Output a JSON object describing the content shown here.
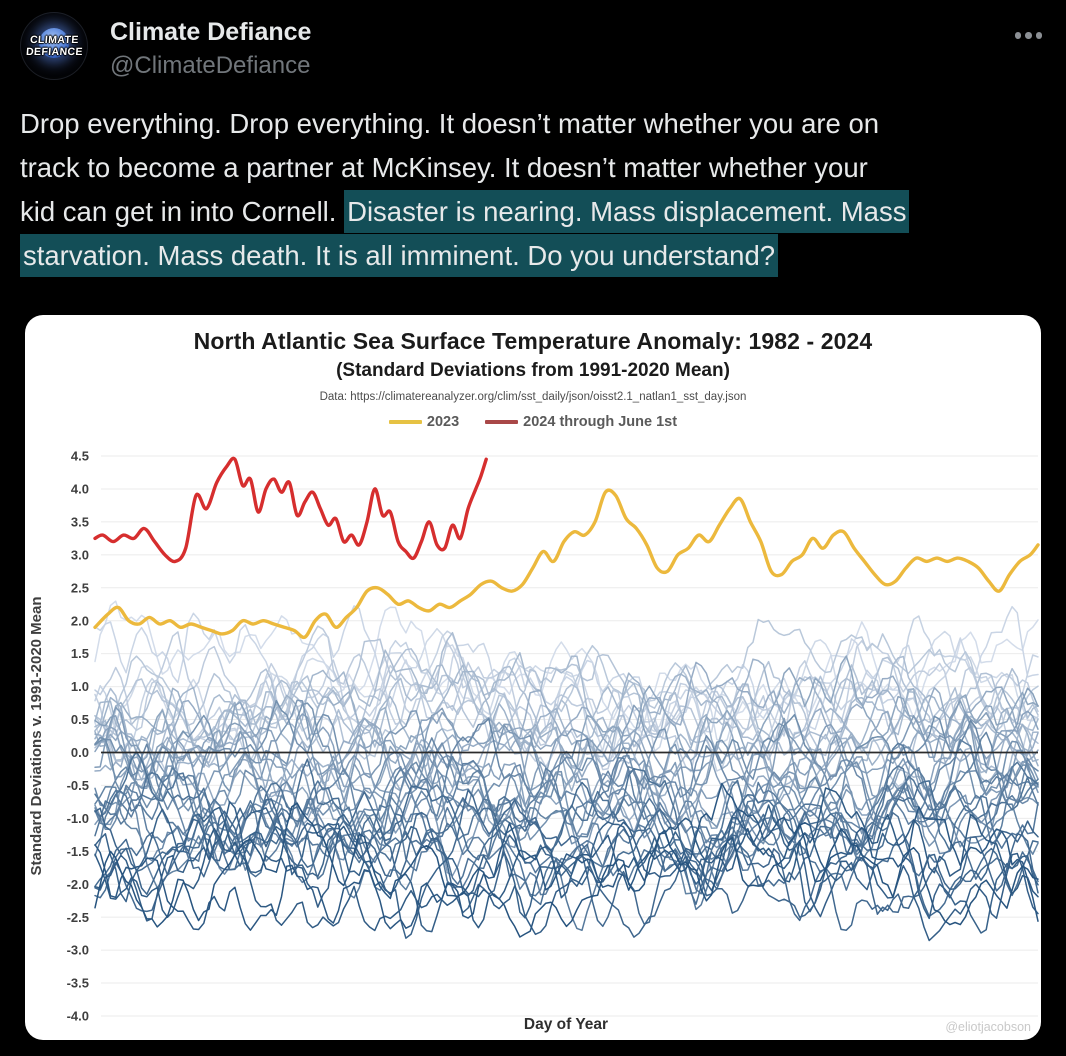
{
  "page": {
    "background": "#000000",
    "card_background": "#ffffff"
  },
  "header": {
    "display_name": "Climate Defiance",
    "handle": "@ClimateDefiance",
    "more_icon": "three-dots"
  },
  "avatar": {
    "line1": "CLIMATE",
    "line2": "DEFIANCE"
  },
  "tweet": {
    "text_color": "#e7e9ea",
    "highlight_color": "#134e57",
    "lines": [
      [
        {
          "text": "Drop everything. Drop everything. It doesn’t matter whether you are on",
          "highlight": false
        }
      ],
      [
        {
          "text": "track to become a partner at McKinsey. It doesn’t matter whether your",
          "highlight": false
        }
      ],
      [
        {
          "text": "kid can get in into Cornell. ",
          "highlight": false
        },
        {
          "text": "Disaster is nearing. Mass displacement. Mass",
          "highlight": true
        }
      ],
      [
        {
          "text": "starvation. Mass death. It is all imminent. Do you understand?",
          "highlight": true
        }
      ]
    ]
  },
  "chart_data": {
    "type": "line",
    "title": "North Atlantic Sea Surface Temperature Anomaly: 1982 - 2024",
    "subtitle": "(Standard Deviations from 1991-2020 Mean)",
    "source": "Data: https://climatereanalyzer.org/clim/sst_daily/json/oisst2.1_natlan1_sst_day.json",
    "xlabel": "Day of Year",
    "ylabel": "Standard Deviations v. 1991-2020 Mean",
    "watermark": "@eliotjacobson",
    "xlim": [
      1,
      365
    ],
    "ylim": [
      -4.0,
      4.5
    ],
    "ytick_step": 0.5,
    "grid": "horizontal",
    "grid_color": "#ebebeb",
    "zero_line": {
      "value": 0.0,
      "color": "#2b2b2b"
    },
    "tick_color": "#3f3f3f",
    "legend": [
      {
        "label": "2023",
        "color": "#e6c243"
      },
      {
        "label": "2024 through June 1st",
        "color": "#a94848"
      }
    ],
    "series": [
      {
        "name": "2023",
        "color": "#ecb93d",
        "width": 3.4,
        "x": [
          1,
          6,
          10,
          14,
          18,
          22,
          26,
          30,
          34,
          38,
          42,
          46,
          50,
          54,
          58,
          62,
          66,
          70,
          74,
          78,
          82,
          86,
          90,
          94,
          98,
          102,
          106,
          110,
          114,
          118,
          122,
          126,
          130,
          134,
          138,
          142,
          146,
          150,
          154,
          158,
          162,
          166,
          170,
          174,
          178,
          182,
          186,
          190,
          194,
          198,
          202,
          206,
          210,
          214,
          218,
          222,
          226,
          230,
          234,
          238,
          242,
          246,
          250,
          254,
          258,
          262,
          266,
          270,
          274,
          278,
          282,
          286,
          290,
          294,
          298,
          302,
          306,
          310,
          314,
          318,
          322,
          326,
          330,
          334,
          338,
          342,
          346,
          350,
          354,
          358,
          362,
          365
        ],
        "y": [
          1.9,
          2.1,
          2.2,
          2.0,
          1.95,
          2.05,
          1.95,
          2.0,
          1.9,
          1.95,
          1.9,
          1.85,
          1.8,
          1.85,
          2.0,
          1.95,
          2.0,
          1.95,
          1.9,
          1.85,
          1.75,
          2.0,
          2.1,
          1.9,
          2.05,
          2.2,
          2.45,
          2.5,
          2.4,
          2.25,
          2.3,
          2.2,
          2.15,
          2.25,
          2.2,
          2.3,
          2.4,
          2.55,
          2.6,
          2.5,
          2.45,
          2.55,
          2.8,
          3.05,
          2.9,
          3.2,
          3.35,
          3.3,
          3.5,
          3.95,
          3.9,
          3.55,
          3.4,
          3.15,
          2.8,
          2.75,
          3.0,
          3.1,
          3.3,
          3.2,
          3.45,
          3.7,
          3.85,
          3.5,
          3.2,
          2.75,
          2.7,
          2.9,
          3.0,
          3.25,
          3.1,
          3.3,
          3.35,
          3.1,
          2.9,
          2.7,
          2.55,
          2.6,
          2.8,
          2.95,
          2.9,
          2.95,
          2.9,
          2.95,
          2.9,
          2.8,
          2.6,
          2.45,
          2.7,
          2.9,
          3.0,
          3.15
        ]
      },
      {
        "name": "2024 through June 1st",
        "color": "#d62e2e",
        "width": 3.4,
        "x": [
          1,
          4,
          8,
          12,
          16,
          20,
          24,
          28,
          32,
          36,
          40,
          44,
          48,
          52,
          55,
          58,
          61,
          64,
          67,
          70,
          73,
          76,
          79,
          82,
          85,
          88,
          91,
          94,
          97,
          100,
          103,
          106,
          109,
          112,
          115,
          118,
          121,
          124,
          127,
          130,
          133,
          136,
          139,
          142,
          145,
          148,
          150,
          152
        ],
        "y": [
          3.25,
          3.3,
          3.2,
          3.3,
          3.25,
          3.4,
          3.2,
          3.0,
          2.9,
          3.1,
          3.9,
          3.7,
          4.1,
          4.35,
          4.45,
          4.05,
          4.15,
          3.65,
          4.0,
          4.15,
          3.95,
          4.1,
          3.6,
          3.8,
          3.95,
          3.7,
          3.45,
          3.55,
          3.2,
          3.3,
          3.15,
          3.5,
          4.0,
          3.6,
          3.65,
          3.2,
          3.05,
          2.95,
          3.2,
          3.5,
          3.15,
          3.1,
          3.45,
          3.25,
          3.7,
          4.0,
          4.2,
          4.45
        ]
      }
    ],
    "ensemble": {
      "name": "individual years 1982-2022",
      "year_start": 1982,
      "year_end": 2022,
      "count": 41,
      "color_dark": "#27547f",
      "color_light": "#d3dcea",
      "base_range": [
        -2.05,
        1.3
      ],
      "clamp": [
        -3.62,
        2.6
      ],
      "dip": {
        "series_index": 2,
        "day": 110,
        "depth": 1.15
      },
      "seed": 1982,
      "line_width": 1.5
    }
  }
}
